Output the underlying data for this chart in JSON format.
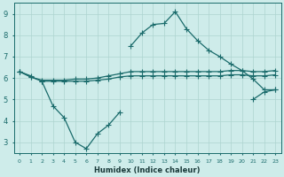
{
  "xlabel": "Humidex (Indice chaleur)",
  "bg_color": "#ceecea",
  "line_color": "#1a6b6b",
  "grid_color": "#aed4d0",
  "hours": [
    0,
    1,
    2,
    3,
    4,
    5,
    6,
    7,
    8,
    9,
    10,
    11,
    12,
    13,
    14,
    15,
    16,
    17,
    18,
    19,
    20,
    21,
    22,
    23
  ],
  "line_top_flat": [
    6.3,
    6.1,
    null,
    null,
    null,
    null,
    null,
    null,
    null,
    null,
    null,
    null,
    null,
    null,
    null,
    null,
    null,
    null,
    null,
    6.65,
    null,
    null,
    null,
    null
  ],
  "line_high": [
    6.3,
    6.1,
    null,
    null,
    null,
    null,
    null,
    null,
    null,
    null,
    7.5,
    8.1,
    8.5,
    8.55,
    9.1,
    8.3,
    7.75,
    7.3,
    7.0,
    6.65,
    6.35,
    5.95,
    5.45,
    5.45
  ],
  "line_flat_upper": [
    6.3,
    6.05,
    5.9,
    5.9,
    5.9,
    5.95,
    5.95,
    6.0,
    6.1,
    6.2,
    6.3,
    6.3,
    6.3,
    6.3,
    6.3,
    6.3,
    6.3,
    6.3,
    6.3,
    6.35,
    6.35,
    6.3,
    6.3,
    6.35
  ],
  "line_flat_lower": [
    6.3,
    6.05,
    5.85,
    5.85,
    5.85,
    5.85,
    5.85,
    5.9,
    5.95,
    6.05,
    6.1,
    6.1,
    6.1,
    6.1,
    6.1,
    6.1,
    6.1,
    6.1,
    6.1,
    6.15,
    6.15,
    6.1,
    6.1,
    6.15
  ],
  "line_low": [
    null,
    null,
    5.85,
    4.7,
    4.15,
    3.0,
    2.7,
    3.4,
    3.8,
    4.4,
    null,
    null,
    null,
    null,
    null,
    null,
    null,
    null,
    null,
    null,
    null,
    5.0,
    5.35,
    5.45
  ],
  "ylim": [
    2.5,
    9.5
  ],
  "yticks": [
    3,
    4,
    5,
    6,
    7,
    8,
    9
  ],
  "xlim": [
    -0.5,
    23.5
  ],
  "xticks": [
    0,
    1,
    2,
    3,
    4,
    5,
    6,
    7,
    8,
    9,
    10,
    11,
    12,
    13,
    14,
    15,
    16,
    17,
    18,
    19,
    20,
    21,
    22,
    23
  ]
}
